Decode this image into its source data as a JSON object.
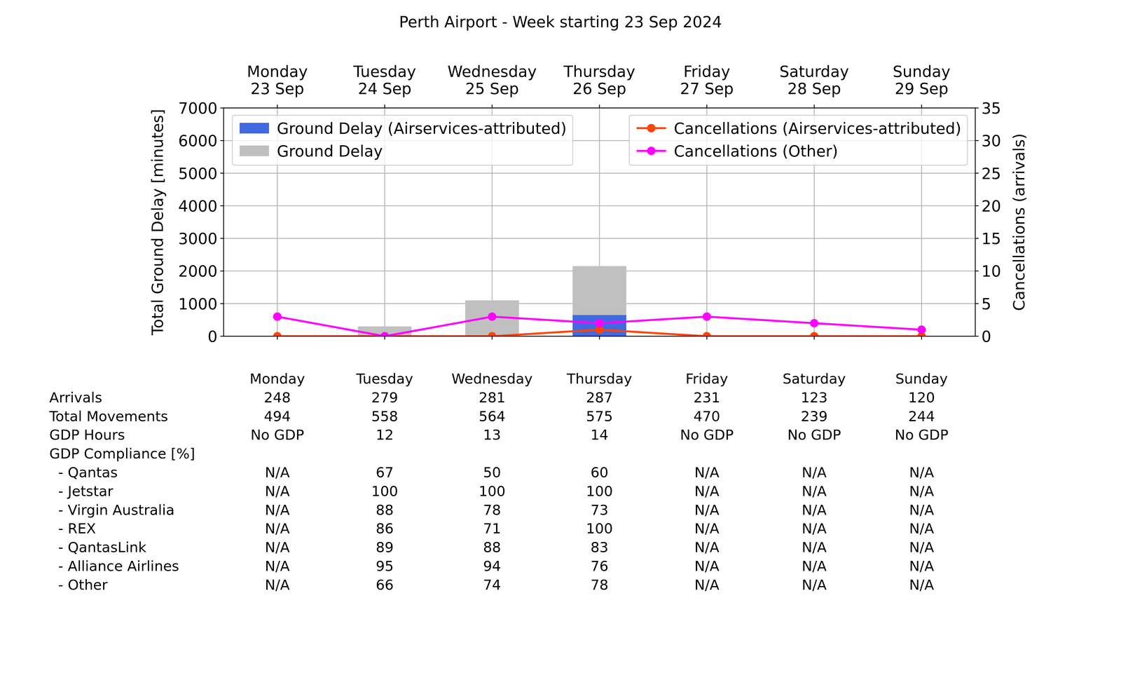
{
  "chart_data": {
    "type": "bar",
    "title": "Perth Airport - Week starting 23 Sep 2024",
    "categories": [
      "Monday\n23 Sep",
      "Tuesday\n24 Sep",
      "Wednesday\n25 Sep",
      "Thursday\n26 Sep",
      "Friday\n27 Sep",
      "Saturday\n28 Sep",
      "Sunday\n29 Sep"
    ],
    "ylabel": "Total Ground Delay [minutes]",
    "y2label": "Cancellations (arrivals)",
    "ylim": [
      0,
      7000
    ],
    "yticks": [
      0,
      1000,
      2000,
      3000,
      4000,
      5000,
      6000,
      7000
    ],
    "y2lim": [
      0,
      35
    ],
    "y2ticks": [
      0,
      5,
      10,
      15,
      20,
      25,
      30,
      35
    ],
    "grid": true,
    "legend": "top",
    "stacked": false,
    "series": [
      {
        "name": "Ground Delay (Airservices-attributed)",
        "type": "bar",
        "color": "#4169e1",
        "values": [
          0,
          0,
          0,
          650,
          0,
          0,
          0
        ]
      },
      {
        "name": "Ground Delay",
        "type": "bar",
        "color": "#c0c0c0",
        "values": [
          0,
          300,
          1100,
          2150,
          0,
          0,
          0
        ]
      },
      {
        "name": "Cancellations (Airservices-attributed)",
        "type": "line",
        "axis": "y2",
        "color": "#ff4500",
        "marker": "circle",
        "line_style": "solid",
        "values": [
          0,
          0,
          0,
          1,
          0,
          0,
          0
        ]
      },
      {
        "name": "Cancellations (Other)",
        "type": "line",
        "axis": "y2",
        "color": "#ff00ff",
        "marker": "circle",
        "line_style": "solid",
        "values": [
          3,
          0,
          3,
          2,
          3,
          2,
          1
        ]
      }
    ]
  },
  "table": {
    "columns": [
      "Monday",
      "Tuesday",
      "Wednesday",
      "Thursday",
      "Friday",
      "Saturday",
      "Sunday"
    ],
    "rows": [
      {
        "label": "Arrivals",
        "values": [
          248,
          279,
          281,
          287,
          231,
          123,
          120
        ]
      },
      {
        "label": "Total Movements",
        "values": [
          494,
          558,
          564,
          575,
          470,
          239,
          244
        ]
      },
      {
        "label": "GDP Hours",
        "values": [
          "No GDP",
          12,
          13,
          14,
          "No GDP",
          "No GDP",
          "No GDP"
        ]
      },
      {
        "label": "GDP Compliance [%]"
      },
      {
        "label": "  - Qantas",
        "values": [
          "N/A",
          67,
          50,
          60,
          "N/A",
          "N/A",
          "N/A"
        ]
      },
      {
        "label": "  - Jetstar",
        "values": [
          "N/A",
          100,
          100,
          100,
          "N/A",
          "N/A",
          "N/A"
        ]
      },
      {
        "label": "  - Virgin Australia",
        "values": [
          "N/A",
          88,
          78,
          73,
          "N/A",
          "N/A",
          "N/A"
        ]
      },
      {
        "label": "  - REX",
        "values": [
          "N/A",
          86,
          71,
          100,
          "N/A",
          "N/A",
          "N/A"
        ]
      },
      {
        "label": "  - QantasLink",
        "values": [
          "N/A",
          89,
          88,
          83,
          "N/A",
          "N/A",
          "N/A"
        ]
      },
      {
        "label": "  - Alliance Airlines",
        "values": [
          "N/A",
          95,
          94,
          76,
          "N/A",
          "N/A",
          "N/A"
        ]
      },
      {
        "label": "  - Other",
        "values": [
          "N/A",
          66,
          74,
          78,
          "N/A",
          "N/A",
          "N/A"
        ]
      }
    ]
  }
}
